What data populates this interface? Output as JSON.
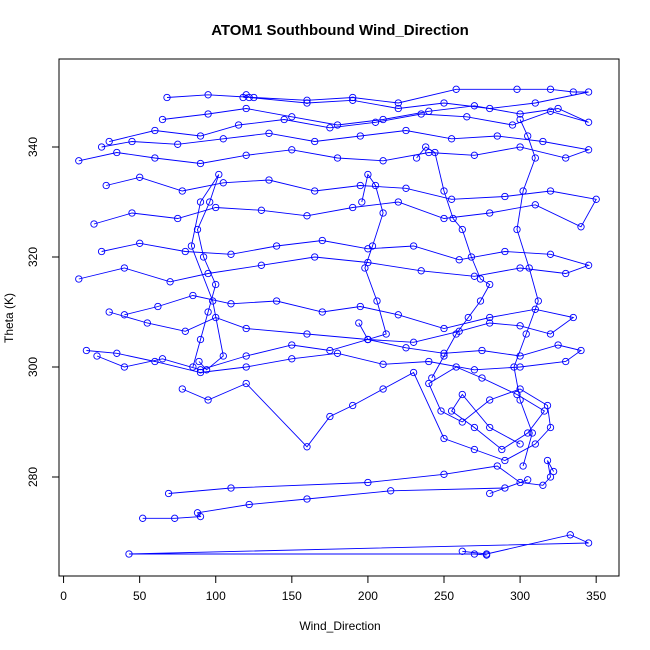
{
  "chart_data": {
    "type": "line",
    "title": "ATOM1 Southbound Wind_Direction",
    "xlabel": "Wind_Direction",
    "ylabel": "Theta (K)",
    "xlim": [
      -3,
      365
    ],
    "ylim": [
      262,
      356
    ],
    "x_ticks": [
      0,
      50,
      100,
      150,
      200,
      250,
      300,
      350
    ],
    "y_ticks": [
      280,
      300,
      320,
      340
    ],
    "grid": false,
    "legend": "none",
    "marker": "open-circle",
    "series": [
      {
        "color": "#0000ff",
        "x": [
          262,
          278,
          333,
          345,
          43,
          270,
          278
        ],
        "y": [
          266.5,
          266.0,
          269.5,
          268.0,
          266.0,
          266.0,
          265.8
        ]
      },
      {
        "color": "#0000ff",
        "x": [
          52,
          73,
          90,
          88,
          122,
          160,
          215,
          290,
          305,
          280
        ],
        "y": [
          272.5,
          272.5,
          272.8,
          273.5,
          275.0,
          276.0,
          277.5,
          278.0,
          279.5,
          277.0
        ]
      },
      {
        "color": "#0000ff",
        "x": [
          69,
          110,
          200,
          250,
          285,
          300,
          315,
          320,
          318,
          322
        ],
        "y": [
          277.0,
          278.0,
          279.0,
          280.5,
          282.0,
          279.0,
          278.5,
          280.0,
          283.0,
          281.0
        ]
      },
      {
        "color": "#0000ff",
        "x": [
          78,
          95,
          120,
          160,
          175,
          190,
          210,
          230,
          250,
          270,
          290,
          310,
          320,
          318,
          300,
          280,
          262,
          248,
          240,
          258,
          275,
          298,
          316,
          305,
          288,
          270,
          255,
          262,
          280,
          300
        ],
        "y": [
          296.0,
          294.0,
          297.0,
          285.5,
          291.0,
          293.0,
          296.0,
          299.0,
          287.0,
          285.0,
          283.0,
          286.0,
          289.0,
          293.0,
          296.0,
          294.0,
          290.0,
          292.0,
          297.0,
          300.0,
          298.0,
          295.0,
          292.0,
          288.0,
          285.0,
          289.0,
          292.0,
          295.0,
          289.0,
          286.0
        ]
      },
      {
        "color": "#0000ff",
        "x": [
          22,
          40,
          65,
          90,
          120,
          150,
          175,
          200,
          225,
          250,
          275,
          300,
          325,
          340,
          330,
          300,
          270,
          240,
          210,
          180,
          150,
          120,
          90,
          60,
          35,
          15
        ],
        "y": [
          302.0,
          300.0,
          301.5,
          299.5,
          302.0,
          304.0,
          303.0,
          305.0,
          303.5,
          302.5,
          303.0,
          302.0,
          304.0,
          303.0,
          301.0,
          300.0,
          299.5,
          301.0,
          300.5,
          302.5,
          301.5,
          300.0,
          299.0,
          301.0,
          302.5,
          303.0
        ]
      },
      {
        "color": "#0000ff",
        "x": [
          30,
          55,
          80,
          100,
          120,
          160,
          200,
          230,
          260,
          280,
          300,
          320,
          335,
          310,
          280,
          250,
          220,
          195,
          170,
          140,
          110,
          85,
          62,
          40
        ],
        "y": [
          310.0,
          308.0,
          306.5,
          309.0,
          307.0,
          306.0,
          305.0,
          304.5,
          306.5,
          308.0,
          307.5,
          306.0,
          309.0,
          310.5,
          309.0,
          307.0,
          309.5,
          311.0,
          310.0,
          312.0,
          311.5,
          313.0,
          311.0,
          309.5
        ]
      },
      {
        "color": "#0000ff",
        "x": [
          10,
          40,
          70,
          95,
          130,
          165,
          200,
          235,
          270,
          300,
          330,
          345,
          320,
          290,
          260,
          230,
          200,
          170,
          140,
          110,
          80,
          50,
          25
        ],
        "y": [
          316.0,
          318.0,
          315.5,
          317.0,
          318.5,
          320.0,
          319.0,
          317.5,
          316.5,
          318.0,
          317.0,
          318.5,
          320.5,
          321.0,
          319.5,
          322.0,
          321.5,
          323.0,
          322.0,
          320.5,
          321.0,
          322.5,
          321.0
        ]
      },
      {
        "color": "#0000ff",
        "x": [
          20,
          45,
          75,
          100,
          130,
          160,
          190,
          220,
          250,
          280,
          310,
          340,
          350,
          320,
          290,
          255,
          225,
          195,
          165,
          135,
          105,
          78,
          50,
          28
        ],
        "y": [
          326.0,
          328.0,
          327.0,
          329.0,
          328.5,
          327.5,
          329.0,
          330.0,
          327.0,
          328.0,
          329.5,
          325.5,
          330.5,
          332.0,
          331.0,
          330.5,
          332.5,
          333.0,
          332.0,
          334.0,
          333.5,
          332.0,
          334.5,
          333.0
        ]
      },
      {
        "color": "#0000ff",
        "x": [
          10,
          35,
          60,
          90,
          120,
          150,
          180,
          210,
          240,
          270,
          300,
          330,
          345,
          315,
          285,
          255,
          225,
          195,
          165,
          135,
          105,
          75,
          45,
          25
        ],
        "y": [
          337.5,
          339.0,
          338.0,
          337.0,
          338.5,
          339.5,
          338.0,
          337.5,
          339.0,
          338.5,
          340.0,
          338.0,
          339.5,
          341.0,
          342.0,
          341.5,
          343.0,
          342.0,
          341.0,
          342.5,
          341.5,
          340.5,
          341.0,
          340.0
        ]
      },
      {
        "color": "#0000ff",
        "x": [
          30,
          60,
          90,
          115,
          145,
          175,
          205,
          235,
          265,
          295,
          320,
          345,
          325,
          300,
          270,
          240,
          210,
          180,
          150,
          120,
          95,
          65
        ],
        "y": [
          341.0,
          343.0,
          342.0,
          344.0,
          345.0,
          343.5,
          344.5,
          346.0,
          345.5,
          344.0,
          346.5,
          344.5,
          347.0,
          346.0,
          347.5,
          346.5,
          345.0,
          344.0,
          345.5,
          347.0,
          346.0,
          345.0
        ]
      },
      {
        "color": "#0000ff",
        "x": [
          68,
          95,
          125,
          160,
          190,
          220,
          258,
          298,
          320,
          335,
          345,
          310,
          280,
          250,
          220,
          190,
          160,
          122,
          120,
          118
        ],
        "y": [
          349.0,
          349.5,
          349.0,
          348.5,
          349.0,
          348.0,
          350.5,
          350.5,
          350.5,
          350.0,
          350.0,
          348.0,
          347.0,
          348.0,
          347.0,
          348.5,
          348.0,
          349.0,
          349.5,
          349.0
        ]
      },
      {
        "color": "#0000ff",
        "x": [
          85,
          90,
          95,
          100,
          92,
          88,
          96,
          102,
          90,
          84,
          98,
          105,
          94,
          89
        ],
        "y": [
          300.0,
          305.0,
          310.0,
          315.0,
          320.0,
          325.0,
          330.0,
          335.0,
          330.0,
          322.0,
          312.0,
          302.0,
          299.5,
          301.0
        ]
      },
      {
        "color": "#0000ff",
        "x": [
          196,
          200,
          205,
          210,
          203,
          198,
          206,
          212,
          200,
          194
        ],
        "y": [
          330.0,
          335.0,
          333.0,
          328.0,
          322.0,
          318.0,
          312.0,
          306.0,
          305.0,
          308.0
        ]
      },
      {
        "color": "#0000ff",
        "x": [
          232,
          238,
          244,
          250,
          256,
          262,
          268,
          274,
          280,
          274,
          266,
          258,
          250,
          242
        ],
        "y": [
          338.0,
          340.0,
          339.0,
          332.0,
          327.0,
          325.0,
          320.0,
          316.0,
          315.0,
          312.0,
          309.0,
          306.0,
          302.0,
          298.0
        ]
      },
      {
        "color": "#0000ff",
        "x": [
          300,
          305,
          310,
          302,
          298,
          306,
          312,
          304,
          296,
          300,
          308,
          302
        ],
        "y": [
          345.0,
          342.0,
          338.0,
          332.0,
          325.0,
          318.0,
          312.0,
          306.0,
          300.0,
          294.0,
          288.0,
          282.0
        ]
      }
    ]
  }
}
